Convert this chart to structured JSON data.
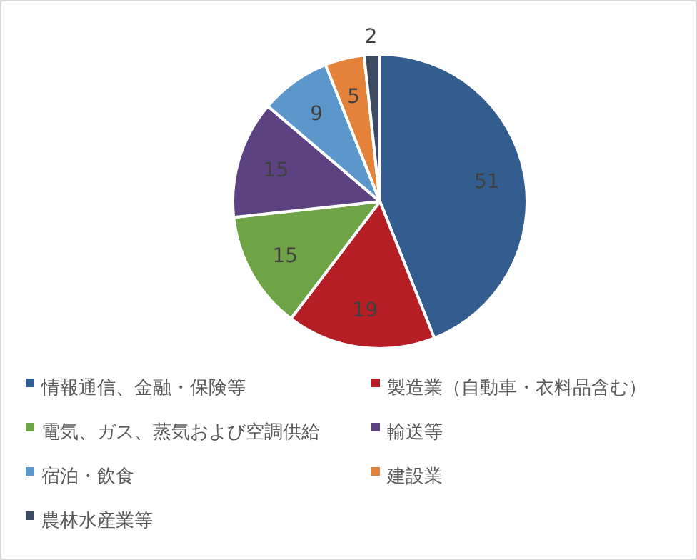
{
  "chart_data": {
    "type": "pie",
    "categories": [
      "情報通信、金融・保険等",
      "製造業（自動車・衣料品含む）",
      "電気、ガス、蒸気および空調供給",
      "輸送等",
      "宿泊・飲食",
      "建設業",
      "農林水産業等"
    ],
    "values": [
      51,
      19,
      15,
      15,
      9,
      5,
      2
    ],
    "colors": [
      "#335c8f",
      "#b61e25",
      "#6ea445",
      "#5c4280",
      "#5b97cb",
      "#e5823a",
      "#3c4b61"
    ],
    "data_labels": true,
    "legend": "bottom"
  }
}
